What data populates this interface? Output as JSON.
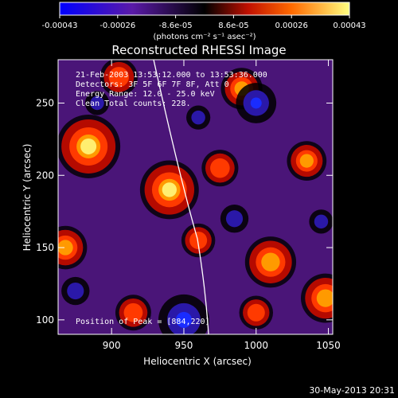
{
  "colorbar": {
    "ticks": [
      "-0.00043",
      "-0.00026",
      "-8.6e-05",
      "8.6e-05",
      "0.00026",
      "0.00043"
    ],
    "units_label": "(photons cm⁻² s⁻¹ asec⁻²)",
    "range": [
      -0.00043,
      0.00043
    ]
  },
  "chart_data": {
    "type": "heatmap",
    "title": "Reconstructed RHESSI Image",
    "xlabel": "Heliocentric X (arcsec)",
    "ylabel": "Heliocentric Y (arcsec)",
    "xlim": [
      863,
      1053
    ],
    "ylim": [
      90,
      280
    ],
    "x_ticks": [
      900,
      950,
      1000,
      1050
    ],
    "y_ticks": [
      100,
      150,
      200,
      250
    ],
    "annotations": [
      "21-Feb-2003 13:53:12.000 to 13:53:36.000",
      "Detectors: 3F 5F 6F 7F 8F, Att 0",
      "Energy Range: 12.0 - 25.0 keV",
      "Clean    Total counts: 228."
    ],
    "peak_label": "Position of Peak = [884,220]",
    "peak": [
      884,
      220
    ],
    "sources": [
      {
        "x": 884,
        "y": 220,
        "value": 0.00043
      },
      {
        "x": 940,
        "y": 190,
        "value": 0.00038
      },
      {
        "x": 1010,
        "y": 140,
        "value": 0.0003
      },
      {
        "x": 1048,
        "y": 115,
        "value": 0.00028
      },
      {
        "x": 868,
        "y": 150,
        "value": 0.00022
      },
      {
        "x": 990,
        "y": 260,
        "value": 0.0002
      },
      {
        "x": 1035,
        "y": 210,
        "value": 0.00018
      },
      {
        "x": 905,
        "y": 268,
        "value": 0.00016
      },
      {
        "x": 975,
        "y": 205,
        "value": 0.00015
      },
      {
        "x": 915,
        "y": 105,
        "value": 0.00014
      },
      {
        "x": 1000,
        "y": 105,
        "value": 0.00012
      },
      {
        "x": 960,
        "y": 155,
        "value": 0.00012
      },
      {
        "x": 1045,
        "y": 168,
        "value": -0.0001
      },
      {
        "x": 950,
        "y": 100,
        "value": -0.00043
      },
      {
        "x": 1000,
        "y": 250,
        "value": -0.0003
      },
      {
        "x": 875,
        "y": 120,
        "value": -0.00015
      },
      {
        "x": 890,
        "y": 250,
        "value": -0.0001
      },
      {
        "x": 960,
        "y": 240,
        "value": -0.0001
      },
      {
        "x": 985,
        "y": 170,
        "value": -0.00015
      }
    ]
  },
  "footer": {
    "timestamp": "30-May-2013 20:31"
  }
}
